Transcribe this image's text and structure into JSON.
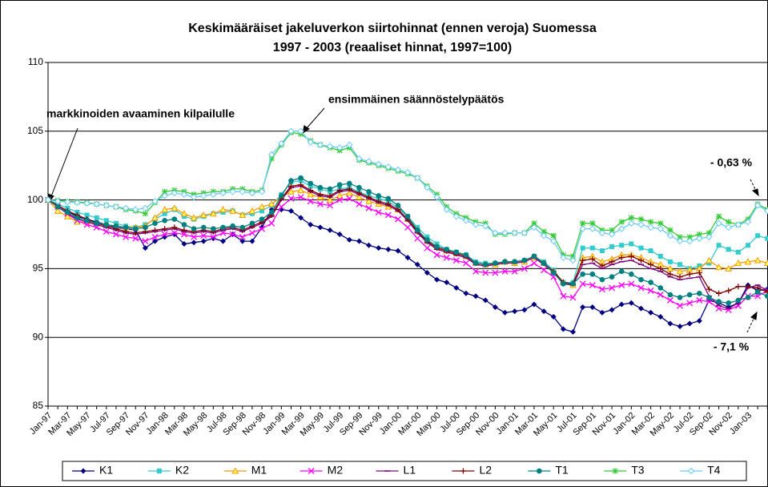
{
  "chart_data": {
    "type": "line",
    "title": [
      "Keskimääräiset jakeluverkon siirtohinnat (ennen veroja) Suomessa",
      "1997 - 2003 (reaaliset hinnat, 1997=100)"
    ],
    "annotations": [
      "markkinoiden avaaminen kilpailulle",
      "ensimmäinen säännöstelypäätös",
      "- 0,63 %",
      "- 7,1 %"
    ],
    "categories": [
      "Jan-97",
      null,
      "Mar-97",
      null,
      "May-97",
      null,
      "Jul-97",
      null,
      "Sep-97",
      null,
      "Nov-97",
      null,
      "Jan-98",
      null,
      "Mar-98",
      null,
      "May-98",
      null,
      "Jul-98",
      null,
      "Sep-98",
      null,
      "Nov-98",
      null,
      "Jan-99",
      null,
      "Mar-99",
      null,
      "May-99",
      null,
      "Jul-99",
      null,
      "Sep-99",
      null,
      "Nov-99",
      null,
      "Jan-00",
      null,
      "Mar-00",
      null,
      "May-00",
      null,
      "Jul-00",
      null,
      "Sep-00",
      null,
      "Nov-00",
      null,
      "Jan-01",
      null,
      "Mar-01",
      null,
      "May-01",
      null,
      "Jul-01",
      null,
      "Sep-01",
      null,
      "Nov-01",
      null,
      "Jan-02",
      null,
      "Mar-02",
      null,
      "May-02",
      null,
      "Jul-02",
      null,
      "Sep-02",
      null,
      "Nov-02",
      null,
      "Jan-03",
      null,
      null
    ],
    "ylim": [
      85,
      110
    ],
    "yticks": [
      85,
      90,
      95,
      100,
      105,
      110
    ],
    "grid": true,
    "legend": "bottom",
    "series": [
      {
        "name": "K1",
        "color": "#000080",
        "marker": "diamond",
        "values": [
          100,
          99.6,
          99.2,
          98.8,
          98.6,
          98.4,
          98.2,
          98.0,
          97.9,
          97.8,
          96.5,
          97.0,
          97.3,
          97.5,
          96.8,
          96.9,
          97.0,
          97.2,
          97.0,
          97.5,
          97.0,
          97.0,
          98.0,
          99.3,
          99.3,
          99.2,
          98.7,
          98.2,
          98.0,
          97.8,
          97.5,
          97.1,
          97.0,
          96.7,
          96.5,
          96.4,
          96.3,
          95.8,
          95.3,
          94.7,
          94.2,
          94.0,
          93.6,
          93.2,
          93.0,
          92.7,
          92.2,
          91.8,
          91.9,
          92.0,
          92.4,
          91.9,
          91.5,
          90.6,
          90.4,
          92.2,
          92.2,
          91.8,
          92.0,
          92.4,
          92.5,
          92.1,
          91.8,
          91.5,
          91.0,
          90.8,
          91.0,
          91.2,
          92.7,
          92.5,
          92.2,
          92.5,
          93.8,
          93.4,
          93.5
        ]
      },
      {
        "name": "K2",
        "color": "#33CCCC",
        "marker": "square",
        "values": [
          100,
          99.7,
          99.4,
          99.1,
          98.9,
          98.7,
          98.5,
          98.3,
          98.1,
          98.0,
          98.2,
          98.6,
          99.0,
          99.3,
          98.8,
          98.6,
          98.8,
          99.0,
          99.1,
          99.2,
          98.9,
          99.0,
          99.2,
          99.6,
          100.4,
          101.3,
          101.4,
          101.0,
          100.8,
          100.6,
          100.8,
          100.9,
          100.6,
          100.3,
          100.1,
          99.9,
          99.4,
          98.8,
          98.0,
          97.3,
          96.8,
          96.4,
          96.2,
          96.0,
          95.5,
          95.4,
          95.4,
          95.5,
          95.5,
          95.6,
          95.9,
          95.5,
          94.9,
          94.0,
          94.0,
          96.5,
          96.5,
          96.3,
          96.6,
          96.7,
          96.8,
          96.5,
          96.3,
          95.9,
          95.5,
          95.3,
          95.0,
          95.2,
          95.4,
          96.7,
          96.4,
          96.2,
          96.7,
          97.4,
          97.2
        ]
      },
      {
        "name": "M1",
        "color": "#FF9900",
        "marker": "triangle",
        "values": [
          100,
          99.2,
          98.8,
          98.4,
          98.4,
          98.3,
          98.2,
          98.1,
          98.0,
          98.0,
          98.1,
          98.7,
          99.3,
          99.4,
          99.0,
          98.7,
          98.9,
          99.0,
          99.3,
          99.2,
          98.9,
          99.2,
          99.5,
          99.7,
          100.2,
          100.6,
          100.7,
          100.4,
          100.2,
          100.0,
          100.3,
          100.5,
          100.2,
          99.9,
          99.7,
          99.5,
          99.3,
          98.6,
          97.8,
          97.0,
          96.6,
          96.3,
          96.1,
          95.9,
          95.4,
          95.3,
          95.3,
          95.5,
          95.4,
          95.5,
          95.8,
          95.4,
          94.8,
          94.0,
          93.8,
          95.8,
          95.9,
          95.5,
          95.7,
          96.0,
          96.0,
          95.8,
          95.5,
          95.3,
          95.0,
          94.8,
          94.9,
          95.0,
          95.6,
          95.1,
          95.0,
          95.4,
          95.5,
          95.6,
          95.4
        ]
      },
      {
        "name": "M2",
        "color": "#FF00FF",
        "marker": "x",
        "values": [
          100,
          99.5,
          99.0,
          98.5,
          98.2,
          98.0,
          97.7,
          97.5,
          97.3,
          97.2,
          97.0,
          97.3,
          97.5,
          97.6,
          97.5,
          97.3,
          97.4,
          97.3,
          97.6,
          97.5,
          97.3,
          97.6,
          97.9,
          98.3,
          99.5,
          100.1,
          100.2,
          99.9,
          99.7,
          99.6,
          100.0,
          100.1,
          99.7,
          99.4,
          99.1,
          98.9,
          98.6,
          98.0,
          97.2,
          96.5,
          96.0,
          95.8,
          95.6,
          95.4,
          94.8,
          94.7,
          94.7,
          94.8,
          94.8,
          95.0,
          95.4,
          94.9,
          94.4,
          93.0,
          92.9,
          93.9,
          93.8,
          93.5,
          93.6,
          93.8,
          93.9,
          93.6,
          93.4,
          93.1,
          92.7,
          92.3,
          92.5,
          92.7,
          92.6,
          92.1,
          92.0,
          92.3,
          93.0,
          93.0,
          93.4
        ]
      },
      {
        "name": "L1",
        "color": "#800080",
        "marker": "dash",
        "values": [
          100,
          99.5,
          99.0,
          98.6,
          98.4,
          98.2,
          98.0,
          97.8,
          97.6,
          97.5,
          97.6,
          97.7,
          97.8,
          97.9,
          97.7,
          97.6,
          97.7,
          97.6,
          97.8,
          97.9,
          97.7,
          98.0,
          98.3,
          98.8,
          100.0,
          100.9,
          101.0,
          100.6,
          100.3,
          100.2,
          100.6,
          100.7,
          100.4,
          100.1,
          99.8,
          99.6,
          99.2,
          98.5,
          97.6,
          96.9,
          96.4,
          96.2,
          96.0,
          95.8,
          95.3,
          95.2,
          95.3,
          95.4,
          95.4,
          95.5,
          95.8,
          95.3,
          94.7,
          93.9,
          93.8,
          95.3,
          95.4,
          95.0,
          95.3,
          95.5,
          95.6,
          95.3,
          95.0,
          94.8,
          94.4,
          94.2,
          94.3,
          94.4,
          93.0,
          92.3,
          92.1,
          92.5,
          93.6,
          93.8,
          93.4
        ]
      },
      {
        "name": "L2",
        "color": "#800000",
        "marker": "plus",
        "values": [
          100,
          99.6,
          99.2,
          98.9,
          98.6,
          98.3,
          98.1,
          97.9,
          97.7,
          97.6,
          97.7,
          97.8,
          97.9,
          98.0,
          97.8,
          97.7,
          97.8,
          97.7,
          97.9,
          98.0,
          97.8,
          98.1,
          98.4,
          98.9,
          100.1,
          101.0,
          101.1,
          100.7,
          100.4,
          100.3,
          100.7,
          100.8,
          100.5,
          100.2,
          99.9,
          99.7,
          99.3,
          98.6,
          97.7,
          97.0,
          96.5,
          96.3,
          96.1,
          95.9,
          95.4,
          95.3,
          95.4,
          95.5,
          95.5,
          95.6,
          95.9,
          95.4,
          94.8,
          94.0,
          93.9,
          95.6,
          95.7,
          95.2,
          95.5,
          95.8,
          95.9,
          95.6,
          95.3,
          95.0,
          94.6,
          94.4,
          94.6,
          94.7,
          93.5,
          93.2,
          93.4,
          93.7,
          93.7,
          93.6,
          93.3
        ]
      },
      {
        "name": "T1",
        "color": "#008080",
        "marker": "circle",
        "values": [
          100,
          99.5,
          99.1,
          98.7,
          98.5,
          98.3,
          98.2,
          98.1,
          98.0,
          97.9,
          98.0,
          98.3,
          98.5,
          98.6,
          98.2,
          97.9,
          98.0,
          97.9,
          98.0,
          98.1,
          98.0,
          98.3,
          98.6,
          99.1,
          100.3,
          101.4,
          101.6,
          101.2,
          100.9,
          100.8,
          101.1,
          101.2,
          100.9,
          100.6,
          100.3,
          100.1,
          99.6,
          98.8,
          97.8,
          97.1,
          96.6,
          96.4,
          96.2,
          96.0,
          95.4,
          95.3,
          95.4,
          95.5,
          95.5,
          95.6,
          95.9,
          95.4,
          94.7,
          93.9,
          93.9,
          94.6,
          94.6,
          94.2,
          94.4,
          94.8,
          94.6,
          94.2,
          94.0,
          93.6,
          93.1,
          92.9,
          93.1,
          93.2,
          92.9,
          92.6,
          92.5,
          92.7,
          92.9,
          93.3,
          93.0
        ]
      },
      {
        "name": "T3",
        "color": "#33CC33",
        "marker": "star",
        "values": [
          100,
          99.95,
          99.9,
          99.85,
          99.8,
          99.7,
          99.6,
          99.5,
          99.3,
          99.2,
          99.0,
          99.8,
          100.6,
          100.7,
          100.6,
          100.4,
          100.5,
          100.6,
          100.6,
          100.8,
          100.8,
          100.6,
          100.7,
          103.0,
          104.0,
          104.9,
          104.8,
          104.3,
          104.0,
          103.8,
          103.6,
          103.8,
          102.9,
          102.7,
          102.5,
          102.3,
          102.1,
          101.9,
          101.6,
          101.0,
          100.4,
          99.5,
          99.0,
          98.7,
          98.4,
          98.3,
          97.5,
          97.5,
          97.6,
          97.6,
          98.3,
          97.7,
          97.4,
          96.0,
          95.9,
          98.3,
          98.3,
          97.8,
          97.8,
          98.4,
          98.7,
          98.6,
          98.4,
          98.3,
          97.8,
          97.3,
          97.3,
          97.5,
          97.6,
          98.8,
          98.4,
          98.2,
          98.6,
          99.7,
          99.3
        ]
      },
      {
        "name": "T4",
        "color": "#66CCFF",
        "marker": "odiamond",
        "values": [
          100,
          99.9,
          99.85,
          99.8,
          99.75,
          99.7,
          99.6,
          99.5,
          99.4,
          99.3,
          99.4,
          99.9,
          100.3,
          100.5,
          100.4,
          100.2,
          100.3,
          100.4,
          100.5,
          100.6,
          100.6,
          100.5,
          100.6,
          103.3,
          104.1,
          105.0,
          105.0,
          104.2,
          104.0,
          103.9,
          103.8,
          104.0,
          103.0,
          102.8,
          102.6,
          102.4,
          102.2,
          102.0,
          101.6,
          100.9,
          100.2,
          99.3,
          98.8,
          98.5,
          98.2,
          98.1,
          97.6,
          97.6,
          97.6,
          97.6,
          98.0,
          97.4,
          97.0,
          95.8,
          95.6,
          97.9,
          97.9,
          97.6,
          97.5,
          97.9,
          98.3,
          98.2,
          98.0,
          97.9,
          97.4,
          97.0,
          97.0,
          97.2,
          97.3,
          98.3,
          98.0,
          98.2,
          98.4,
          99.6,
          99.2
        ]
      }
    ]
  }
}
